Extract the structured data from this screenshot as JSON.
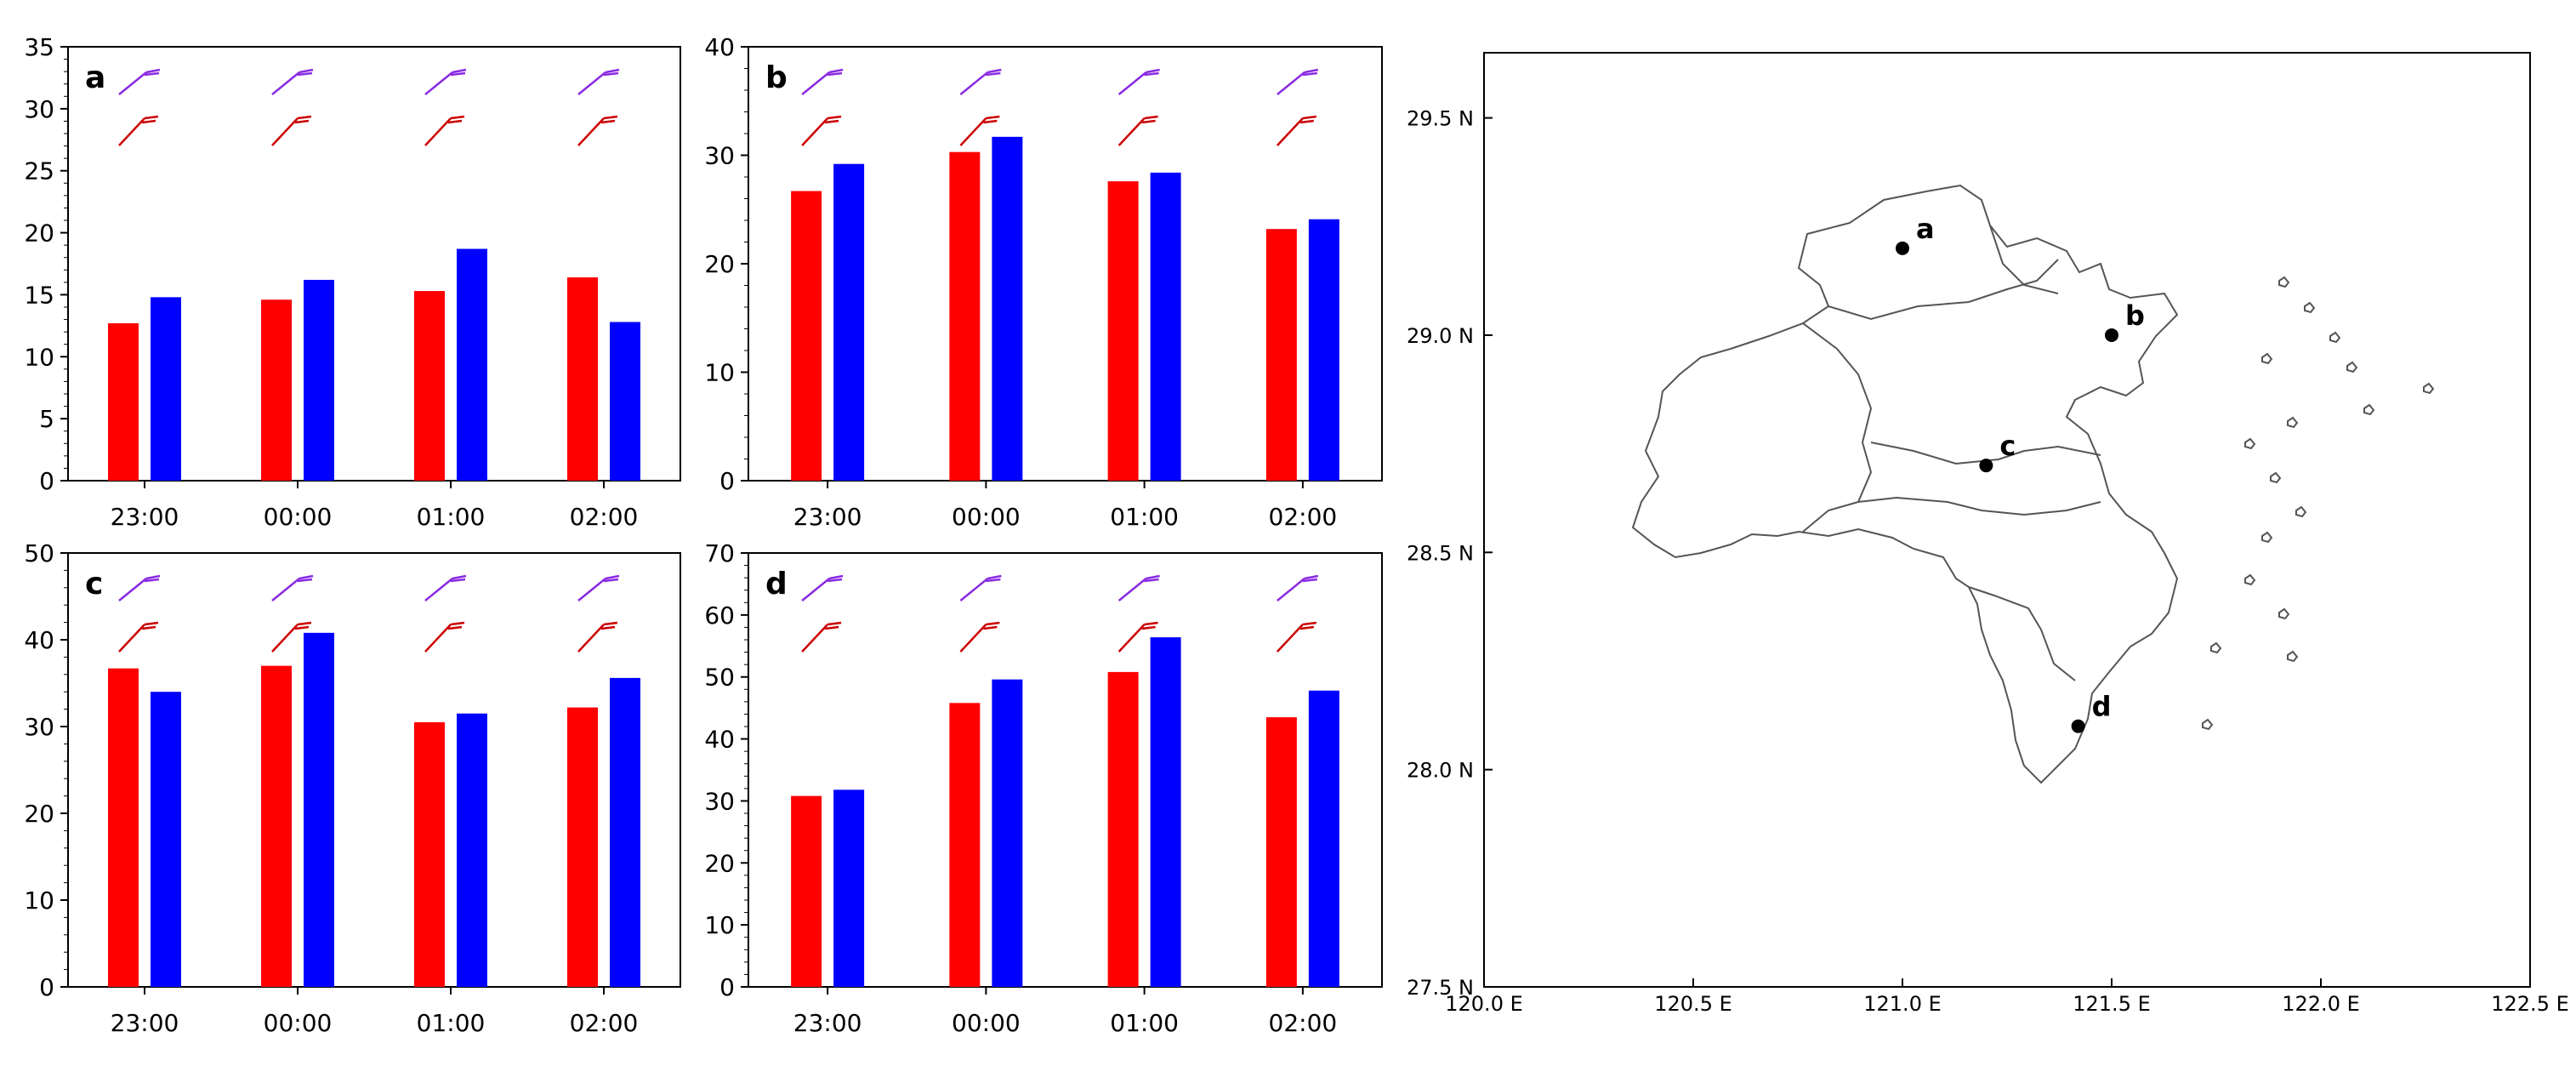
{
  "colors": {
    "bar_red": "#ff0000",
    "bar_blue": "#0000ff",
    "barb_purple": "#8a2be2",
    "barb_red": "#cc0000",
    "axis": "#000000",
    "coast": "#555555"
  },
  "chart_data": [
    {
      "panel": "a",
      "type": "bar",
      "categories": [
        "23:00",
        "00:00",
        "01:00",
        "02:00"
      ],
      "series": [
        {
          "values": [
            12.7,
            14.6,
            15.3,
            16.4
          ]
        },
        {
          "values": [
            14.8,
            16.2,
            18.7,
            12.8
          ]
        }
      ],
      "ylim": [
        0,
        35
      ],
      "yticks": [
        0,
        5,
        10,
        15,
        20,
        25,
        30,
        35
      ],
      "grid": false
    },
    {
      "panel": "b",
      "type": "bar",
      "categories": [
        "23:00",
        "00:00",
        "01:00",
        "02:00"
      ],
      "series": [
        {
          "values": [
            26.7,
            30.3,
            27.6,
            23.2
          ]
        },
        {
          "values": [
            29.2,
            31.7,
            28.4,
            24.1
          ]
        }
      ],
      "ylim": [
        0,
        40
      ],
      "yticks": [
        0,
        10,
        20,
        30,
        40
      ],
      "grid": false
    },
    {
      "panel": "c",
      "type": "bar",
      "categories": [
        "23:00",
        "00:00",
        "01:00",
        "02:00"
      ],
      "series": [
        {
          "values": [
            36.7,
            37.0,
            30.5,
            32.2
          ]
        },
        {
          "values": [
            34.0,
            40.8,
            31.5,
            35.6
          ]
        }
      ],
      "ylim": [
        0,
        50
      ],
      "yticks": [
        0,
        10,
        20,
        30,
        40,
        50
      ],
      "grid": false
    },
    {
      "panel": "d",
      "type": "bar",
      "categories": [
        "23:00",
        "00:00",
        "01:00",
        "02:00"
      ],
      "series": [
        {
          "values": [
            30.8,
            45.8,
            50.8,
            43.5
          ]
        },
        {
          "values": [
            31.8,
            49.6,
            56.4,
            47.8
          ]
        }
      ],
      "ylim": [
        0,
        70
      ],
      "yticks": [
        0,
        10,
        20,
        30,
        40,
        50,
        60,
        70
      ],
      "grid": false
    },
    {
      "panel": "map",
      "type": "scatter",
      "xlim": [
        120.0,
        122.5
      ],
      "ylim": [
        27.5,
        29.65
      ],
      "xticks": [
        {
          "v": 120.0,
          "label": "120.0 E"
        },
        {
          "v": 120.5,
          "label": "120.5 E"
        },
        {
          "v": 121.0,
          "label": "121.0 E"
        },
        {
          "v": 121.5,
          "label": "121.5 E"
        },
        {
          "v": 122.0,
          "label": "122.0 E"
        },
        {
          "v": 122.5,
          "label": "122.5 E"
        }
      ],
      "yticks": [
        {
          "v": 27.5,
          "label": "27.5 N"
        },
        {
          "v": 28.0,
          "label": "28.0 N"
        },
        {
          "v": 28.5,
          "label": "28.5 N"
        },
        {
          "v": 29.0,
          "label": "29.0 N"
        },
        {
          "v": 29.5,
          "label": "29.5 N"
        }
      ],
      "points": [
        {
          "name": "a",
          "lon": 121.0,
          "lat": 29.2
        },
        {
          "name": "b",
          "lon": 121.5,
          "lat": 29.0
        },
        {
          "name": "c",
          "lon": 121.2,
          "lat": 28.7
        },
        {
          "name": "d",
          "lon": 121.42,
          "lat": 28.1
        }
      ]
    }
  ]
}
